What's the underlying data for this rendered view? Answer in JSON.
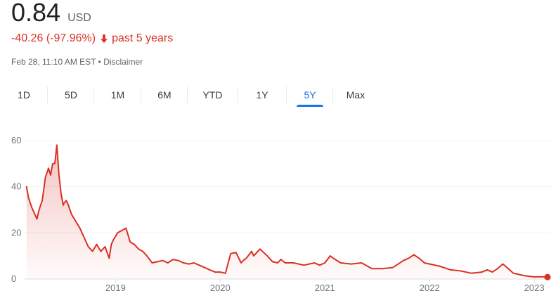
{
  "quote": {
    "price": "0.84",
    "currency": "USD",
    "change": "-40.26 (-97.96%)",
    "change_period": "past 5 years",
    "change_icon": "arrow-down-icon",
    "timestamp": "Feb 28, 11:10 AM EST",
    "separator": "•",
    "disclaimer": "Disclaimer"
  },
  "colors": {
    "negative": "#d93025",
    "active_tab": "#1a73e8",
    "text_primary": "#202124",
    "text_secondary": "#5f6368"
  },
  "range_tabs": [
    {
      "label": "1D",
      "active": false
    },
    {
      "label": "5D",
      "active": false
    },
    {
      "label": "1M",
      "active": false
    },
    {
      "label": "6M",
      "active": false
    },
    {
      "label": "YTD",
      "active": false
    },
    {
      "label": "1Y",
      "active": false
    },
    {
      "label": "5Y",
      "active": true
    },
    {
      "label": "Max",
      "active": false
    }
  ],
  "chart_data": {
    "type": "area",
    "yticks": [
      0,
      20,
      40,
      60
    ],
    "ylim": [
      0,
      63
    ],
    "xticks": [
      2019,
      2020,
      2021,
      2022,
      2023
    ],
    "xlim": [
      2018.145,
      2023.16
    ],
    "grid": true,
    "line_color": "#d93025",
    "x": [
      2018.15,
      2018.17,
      2018.2,
      2018.25,
      2018.27,
      2018.3,
      2018.33,
      2018.36,
      2018.38,
      2018.4,
      2018.42,
      2018.44,
      2018.46,
      2018.48,
      2018.5,
      2018.51,
      2018.53,
      2018.55,
      2018.58,
      2018.62,
      2018.66,
      2018.7,
      2018.74,
      2018.78,
      2018.82,
      2018.86,
      2018.9,
      2018.94,
      2018.96,
      2018.98,
      2019.02,
      2019.06,
      2019.1,
      2019.14,
      2019.18,
      2019.22,
      2019.26,
      2019.3,
      2019.35,
      2019.4,
      2019.45,
      2019.5,
      2019.55,
      2019.6,
      2019.65,
      2019.7,
      2019.75,
      2019.8,
      2019.85,
      2019.9,
      2019.95,
      2020.0,
      2020.05,
      2020.1,
      2020.15,
      2020.2,
      2020.22,
      2020.25,
      2020.3,
      2020.32,
      2020.38,
      2020.45,
      2020.5,
      2020.55,
      2020.58,
      2020.62,
      2020.7,
      2020.8,
      2020.9,
      2020.95,
      2021.0,
      2021.05,
      2021.08,
      2021.15,
      2021.25,
      2021.35,
      2021.45,
      2021.55,
      2021.65,
      2021.75,
      2021.8,
      2021.85,
      2021.9,
      2021.95,
      2022.0,
      2022.1,
      2022.2,
      2022.3,
      2022.4,
      2022.5,
      2022.55,
      2022.6,
      2022.65,
      2022.7,
      2022.74,
      2022.8,
      2022.85,
      2022.9,
      2022.95,
      2023.0,
      2023.05,
      2023.1,
      2023.15
    ],
    "y": [
      40,
      35,
      31,
      26,
      30,
      34,
      44,
      48,
      45,
      50,
      50,
      58,
      45,
      37,
      32,
      33,
      34,
      32,
      28,
      25,
      22,
      18,
      14,
      12,
      15,
      12,
      14,
      9,
      15,
      17,
      20,
      21,
      22,
      16,
      15,
      13,
      12,
      10,
      7,
      7.5,
      8,
      7,
      8.5,
      8,
      7,
      6.5,
      7,
      6,
      5,
      4,
      3,
      3,
      2.5,
      11,
      11.5,
      7,
      8,
      9,
      12,
      10,
      13,
      10,
      7.5,
      7,
      8.5,
      7,
      7,
      6,
      7,
      6,
      7,
      10,
      9,
      7,
      6.5,
      7,
      4.5,
      4.5,
      5,
      8,
      9,
      10.5,
      9,
      7,
      6.5,
      5.5,
      4,
      3.5,
      2.5,
      3,
      4,
      3,
      4.5,
      6.5,
      5,
      2.5,
      2,
      1.5,
      1.2,
      0.9,
      1.0,
      0.9,
      0.84
    ],
    "last_value": 0.84
  }
}
